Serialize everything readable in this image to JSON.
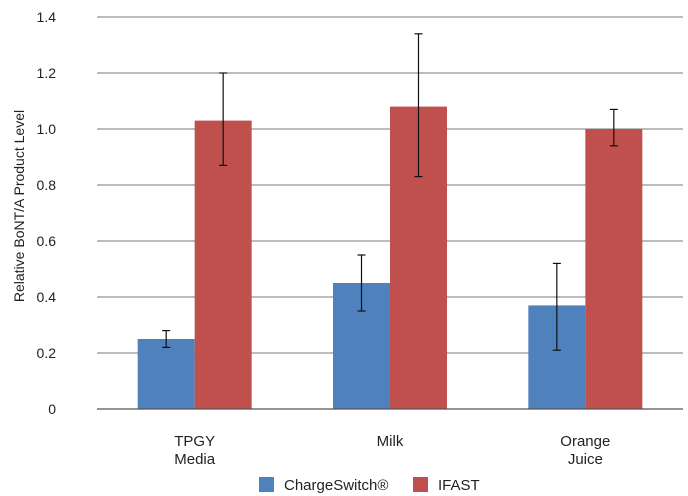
{
  "chart_data": {
    "type": "bar",
    "ylabel": "Relative BoNT/A Product Level",
    "xlabel": "",
    "ylim": [
      0,
      1.4
    ],
    "yticks": [
      0,
      0.2,
      0.4,
      0.6,
      0.8,
      1.0,
      1.2,
      1.4
    ],
    "ytick_labels": [
      "0",
      "0.2",
      "0.4",
      "0.6",
      "0.8",
      "1.0",
      "1.2",
      "1.4"
    ],
    "grid": true,
    "legend_position": "bottom",
    "categories": [
      [
        "TPGY",
        "Media"
      ],
      [
        "Milk"
      ],
      [
        "Orange",
        "Juice"
      ]
    ],
    "series": [
      {
        "name": "ChargeSwitch®",
        "color": "#4f81bd",
        "values": [
          0.25,
          0.45,
          0.37
        ],
        "err_low": [
          0.22,
          0.35,
          0.21
        ],
        "err_high": [
          0.28,
          0.55,
          0.52
        ]
      },
      {
        "name": "IFAST",
        "color": "#c0504d",
        "values": [
          1.03,
          1.08,
          1.0
        ],
        "err_low": [
          0.87,
          0.83,
          0.94
        ],
        "err_high": [
          1.2,
          1.34,
          1.07
        ]
      }
    ]
  }
}
